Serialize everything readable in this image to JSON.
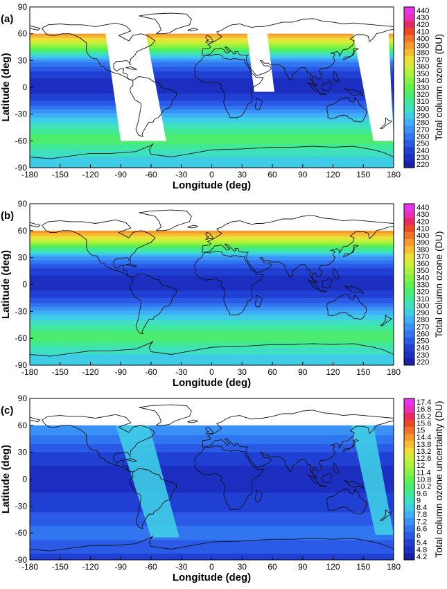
{
  "chart_data": [
    {
      "type": "heatmap",
      "panel_label": "(a)",
      "xlabel": "Longitude (deg)",
      "ylabel": "Latitude (deg)",
      "xlim": [
        -180,
        180
      ],
      "ylim": [
        -90,
        90
      ],
      "xticks": [
        -180,
        -150,
        -120,
        -90,
        -60,
        -30,
        0,
        30,
        60,
        90,
        120,
        150,
        180
      ],
      "yticks": [
        -90,
        -60,
        -30,
        0,
        30,
        60,
        90
      ],
      "data_lat_range": [
        -90,
        60
      ],
      "colorbar_label": "Total column ozone (DU)",
      "colorbar_ticks": [
        "220",
        "230",
        "240",
        "250",
        "260",
        "270",
        "280",
        "290",
        "300",
        "310",
        "320",
        "330",
        "340",
        "350",
        "360",
        "370",
        "380",
        "390",
        "400",
        "410",
        "420",
        "430",
        "440"
      ],
      "lat_profile": [
        {
          "lat": 60,
          "value": 398
        },
        {
          "lat": 50,
          "value": 365
        },
        {
          "lat": 40,
          "value": 320
        },
        {
          "lat": 30,
          "value": 275
        },
        {
          "lat": 20,
          "value": 252
        },
        {
          "lat": 10,
          "value": 240
        },
        {
          "lat": 0,
          "value": 236
        },
        {
          "lat": -10,
          "value": 242
        },
        {
          "lat": -20,
          "value": 258
        },
        {
          "lat": -30,
          "value": 282
        },
        {
          "lat": -40,
          "value": 300
        },
        {
          "lat": -50,
          "value": 318
        },
        {
          "lat": -60,
          "value": 328
        },
        {
          "lat": -70,
          "value": 310
        },
        {
          "lat": -80,
          "value": 298
        },
        {
          "lat": -90,
          "value": 290
        }
      ],
      "no_data_gaps": [
        {
          "region": "Americas swath",
          "lon_top": [
            -105,
            -65
          ],
          "lon_bottom": [
            -90,
            -45
          ],
          "lat_range": [
            -60,
            60
          ]
        },
        {
          "region": "Europe/Africa swath",
          "lon_top": [
            35,
            55
          ],
          "lon_bottom": [
            42,
            62
          ],
          "lat_range": [
            -5,
            60
          ]
        },
        {
          "region": "Pacific swath",
          "lon_top": [
            140,
            175
          ],
          "lon_bottom": [
            160,
            180
          ],
          "lat_range": [
            -60,
            60
          ]
        }
      ]
    },
    {
      "type": "heatmap",
      "panel_label": "(b)",
      "xlabel": "Longitude (deg)",
      "ylabel": "Latitude (deg)",
      "xlim": [
        -180,
        180
      ],
      "ylim": [
        -90,
        90
      ],
      "xticks": [
        -180,
        -150,
        -120,
        -90,
        -60,
        -30,
        0,
        30,
        60,
        90,
        120,
        150,
        180
      ],
      "yticks": [
        -90,
        -60,
        -30,
        0,
        30,
        60,
        90
      ],
      "data_lat_range": [
        -90,
        60
      ],
      "colorbar_label": "Total column ozone (DU)",
      "colorbar_ticks": [
        "220",
        "230",
        "240",
        "250",
        "260",
        "270",
        "280",
        "290",
        "300",
        "310",
        "320",
        "330",
        "340",
        "350",
        "360",
        "370",
        "380",
        "390",
        "400",
        "410",
        "420",
        "430",
        "440"
      ],
      "lat_profile": [
        {
          "lat": 60,
          "value": 400
        },
        {
          "lat": 50,
          "value": 368
        },
        {
          "lat": 40,
          "value": 322
        },
        {
          "lat": 30,
          "value": 276
        },
        {
          "lat": 20,
          "value": 252
        },
        {
          "lat": 10,
          "value": 240
        },
        {
          "lat": 0,
          "value": 236
        },
        {
          "lat": -10,
          "value": 242
        },
        {
          "lat": -20,
          "value": 258
        },
        {
          "lat": -30,
          "value": 282
        },
        {
          "lat": -40,
          "value": 300
        },
        {
          "lat": -50,
          "value": 318
        },
        {
          "lat": -60,
          "value": 328
        },
        {
          "lat": -70,
          "value": 310
        },
        {
          "lat": -80,
          "value": 298
        },
        {
          "lat": -90,
          "value": 290
        }
      ],
      "no_data_gaps": []
    },
    {
      "type": "heatmap",
      "panel_label": "(c)",
      "xlabel": "Longitude (deg)",
      "ylabel": "Latitude (deg)",
      "xlim": [
        -180,
        180
      ],
      "ylim": [
        -90,
        90
      ],
      "xticks": [
        -180,
        -150,
        -120,
        -90,
        -60,
        -30,
        0,
        30,
        60,
        90,
        120,
        150,
        180
      ],
      "yticks": [
        -90,
        -60,
        -30,
        0,
        30,
        60,
        90
      ],
      "data_lat_range": [
        -90,
        60
      ],
      "colorbar_label": "Total column ozone uncertainty (DU)",
      "colorbar_ticks": [
        "4.2",
        "4.8",
        "5.4",
        "6",
        "6.6",
        "7.2",
        "7.8",
        "8.4",
        "9",
        "9.6",
        "10.2",
        "10.8",
        "11.4",
        "12",
        "12.6",
        "13.2",
        "13.8",
        "14.4",
        "15",
        "15.6",
        "16.2",
        "16.8",
        "17.4"
      ],
      "lat_profile": [
        {
          "lat": 60,
          "value": 7.8
        },
        {
          "lat": 45,
          "value": 7.0
        },
        {
          "lat": 30,
          "value": 6.0
        },
        {
          "lat": 15,
          "value": 5.4
        },
        {
          "lat": 0,
          "value": 5.2
        },
        {
          "lat": -15,
          "value": 5.4
        },
        {
          "lat": -30,
          "value": 5.8
        },
        {
          "lat": -45,
          "value": 6.2
        },
        {
          "lat": -60,
          "value": 7.0
        },
        {
          "lat": -75,
          "value": 6.2
        },
        {
          "lat": -90,
          "value": 5.8
        }
      ],
      "swath_bands": [
        {
          "region": "Americas swath",
          "lon_top": [
            -95,
            -62
          ],
          "lon_bottom": [
            -60,
            -32
          ],
          "lat_range": [
            -65,
            60
          ],
          "value": 8.4
        },
        {
          "region": "Pacific swath",
          "lon_top": [
            138,
            160
          ],
          "lon_bottom": [
            162,
            180
          ],
          "lat_range": [
            -62,
            60
          ],
          "value": 8.4
        }
      ]
    }
  ]
}
